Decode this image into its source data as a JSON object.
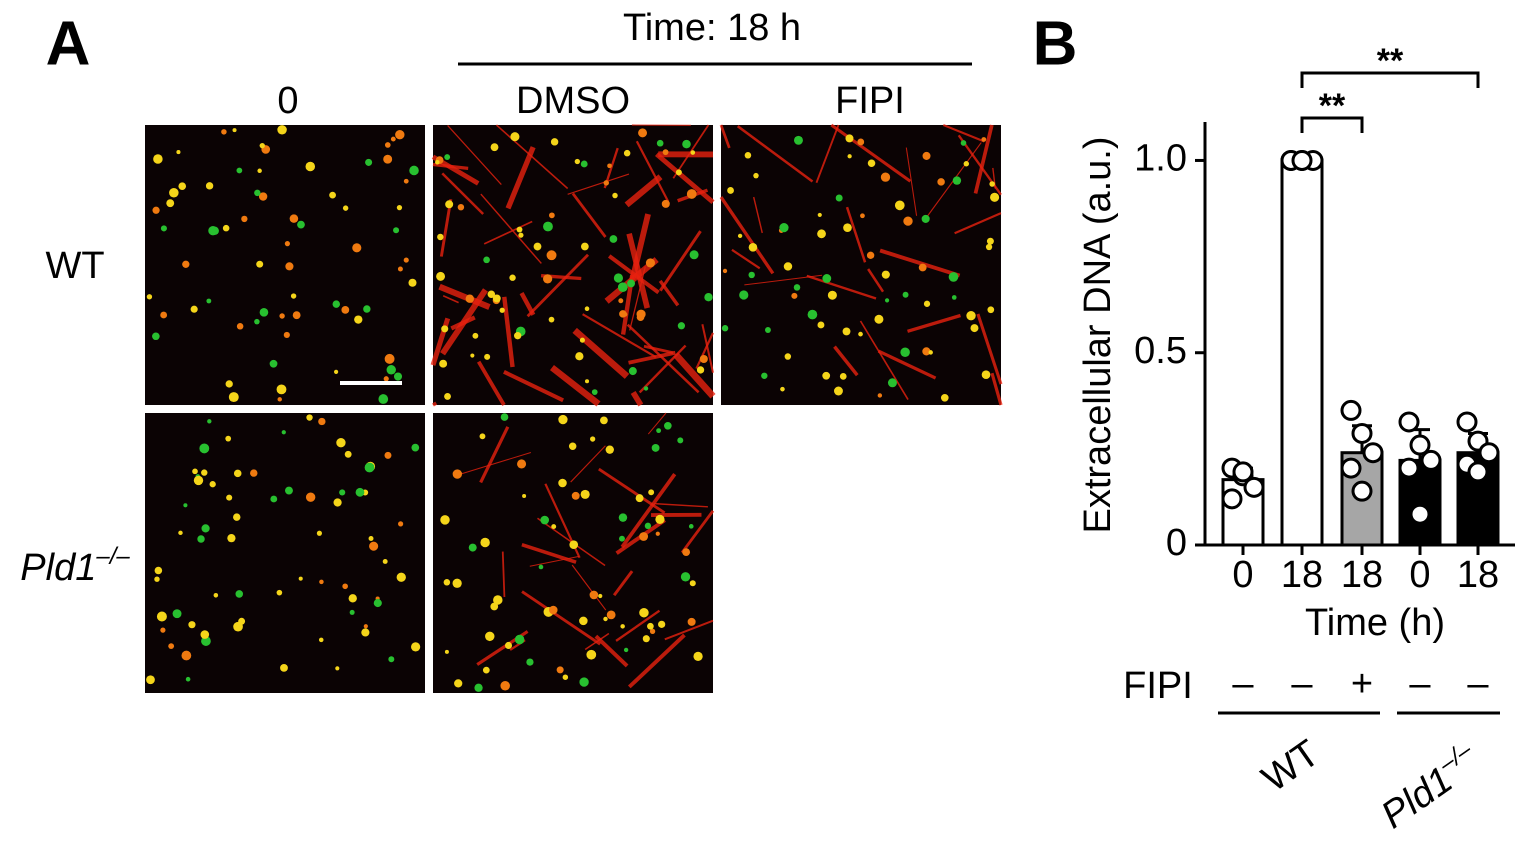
{
  "panel_a": {
    "letter": "A",
    "time_header": "Time: 18 h",
    "columns": [
      "0",
      "DMSO",
      "FIPI"
    ],
    "rows": [
      {
        "text": "WT"
      },
      {
        "text": "Pld1",
        "sup": "–/–"
      }
    ]
  },
  "chart_data": {
    "type": "bar",
    "letter": "B",
    "y_label": "Extracellular DNA (a.u.)",
    "x_label": "Time (h)",
    "categories": [
      "0",
      "18",
      "18",
      "0",
      "18"
    ],
    "values": [
      0.17,
      1.0,
      0.24,
      0.22,
      0.24
    ],
    "errors": [
      0.03,
      0.0,
      0.07,
      0.08,
      0.05
    ],
    "points": [
      [
        0.2,
        0.18,
        0.15,
        0.12,
        0.19
      ],
      [
        1.0,
        1.0,
        1.0,
        1.0,
        1.0
      ],
      [
        0.35,
        0.29,
        0.24,
        0.2,
        0.14
      ],
      [
        0.32,
        0.26,
        0.22,
        0.2,
        0.08
      ],
      [
        0.32,
        0.27,
        0.24,
        0.21,
        0.19
      ]
    ],
    "colors": [
      "#ffffff",
      "#ffffff",
      "#a6a6a6",
      "#000000",
      "#000000"
    ],
    "ylim": [
      0,
      1.1
    ],
    "yticks": [
      0,
      0.5,
      {
        "value": 1,
        "label": "1.0"
      }
    ],
    "annotations": [
      "**",
      "**"
    ],
    "treatment_label": "FIPI",
    "treatment": [
      "–",
      "–",
      "+",
      "–",
      "–"
    ],
    "groups": [
      {
        "text": "WT"
      },
      {
        "text": "Pld1",
        "sup": "–/–"
      }
    ]
  }
}
